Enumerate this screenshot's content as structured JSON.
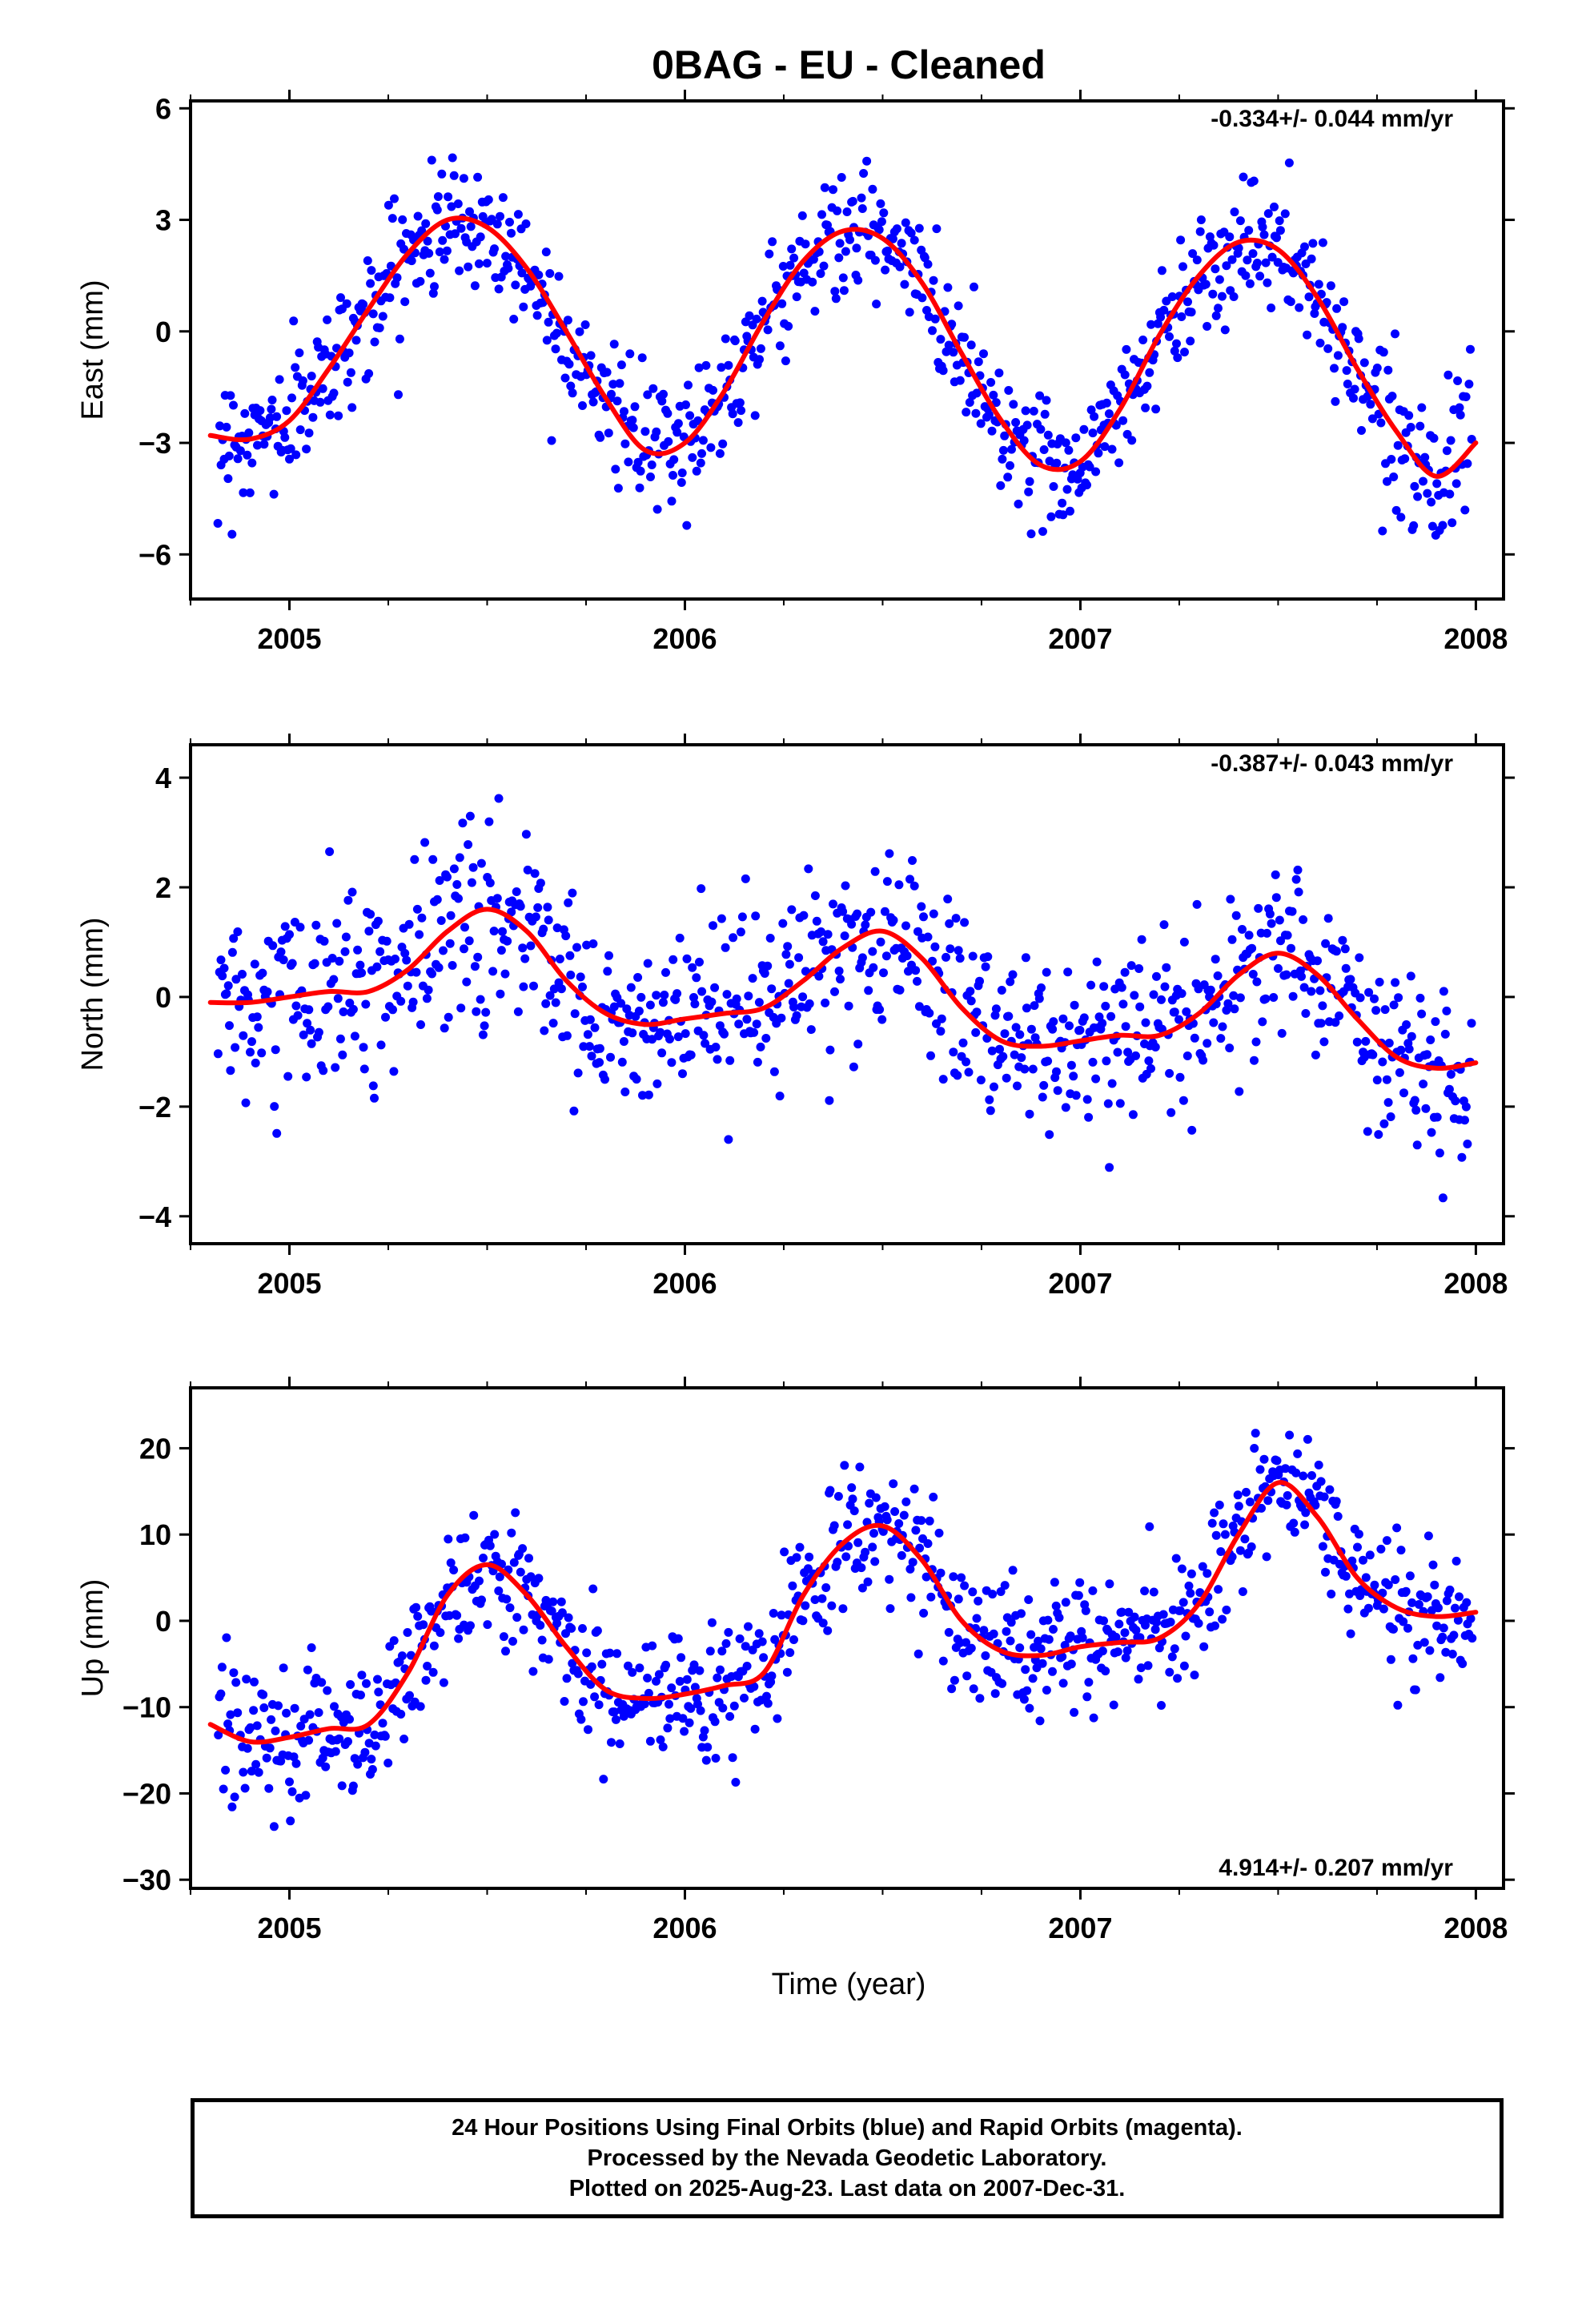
{
  "title": "0BAG  - EU - Cleaned",
  "xlabel": "Time (year)",
  "footer": {
    "line1": "24 Hour Positions Using Final Orbits (blue) and Rapid Orbits (magenta).",
    "line2": "Processed by the Nevada Geodetic Laboratory.",
    "line3": "Plotted on 2025-Aug-23. Last data on 2007-Dec-31."
  },
  "colors": {
    "points": "#0000ff",
    "fit": "#ff0000",
    "axes": "#000000"
  },
  "chart_data": [
    {
      "type": "scatter",
      "ylabel": "East (mm)",
      "rate": "-0.334+/- 0.044 mm/yr",
      "xlim": [
        2004.75,
        2008.07
      ],
      "ylim": [
        -7.2,
        6.2
      ],
      "xticks": [
        "2005",
        "2006",
        "2007",
        "2008"
      ],
      "yticks": [
        "-6",
        "-3",
        "0",
        "3",
        "6"
      ],
      "ytick_values": [
        -6,
        -3,
        0,
        3,
        6
      ],
      "fit": {
        "name": "model fit",
        "x": [
          2004.8,
          2004.9,
          2005.0,
          2005.1,
          2005.2,
          2005.3,
          2005.4,
          2005.5,
          2005.6,
          2005.7,
          2005.8,
          2005.9,
          2006.0,
          2006.1,
          2006.2,
          2006.3,
          2006.4,
          2006.5,
          2006.6,
          2006.7,
          2006.8,
          2006.9,
          2007.0,
          2007.1,
          2007.2,
          2007.3,
          2007.4,
          2007.5,
          2007.6,
          2007.7,
          2007.8,
          2007.9,
          2008.0
        ],
        "y": [
          -2.8,
          -2.9,
          -2.4,
          -1.0,
          0.6,
          2.1,
          3.0,
          2.8,
          1.7,
          0.0,
          -1.8,
          -3.2,
          -3.0,
          -1.6,
          0.3,
          1.9,
          2.7,
          2.5,
          1.3,
          -0.6,
          -2.4,
          -3.6,
          -3.5,
          -2.1,
          -0.1,
          1.5,
          2.4,
          2.2,
          0.9,
          -1.0,
          -2.7,
          -3.9,
          -3.0
        ]
      },
      "points": {
        "name": "positions",
        "x_start": 2004.82,
        "x_end": 2007.99,
        "count": 900,
        "scatter_sd": 1.0
      }
    },
    {
      "type": "scatter",
      "ylabel": "North (mm)",
      "rate": "-0.387+/- 0.043 mm/yr",
      "xlim": [
        2004.75,
        2008.07
      ],
      "ylim": [
        -4.5,
        4.6
      ],
      "xticks": [
        "2005",
        "2006",
        "2007",
        "2008"
      ],
      "yticks": [
        "4",
        "2",
        "0",
        "-2",
        "-4"
      ],
      "ytick_values": [
        4,
        2,
        0,
        -2,
        -4
      ],
      "fit": {
        "name": "model fit",
        "x": [
          2004.8,
          2004.9,
          2005.0,
          2005.1,
          2005.2,
          2005.3,
          2005.4,
          2005.5,
          2005.6,
          2005.7,
          2005.8,
          2005.9,
          2006.0,
          2006.1,
          2006.2,
          2006.3,
          2006.4,
          2006.5,
          2006.6,
          2006.7,
          2006.8,
          2006.9,
          2007.0,
          2007.1,
          2007.2,
          2007.3,
          2007.4,
          2007.5,
          2007.6,
          2007.7,
          2007.8,
          2007.9,
          2008.0
        ],
        "y": [
          -0.1,
          -0.1,
          0.0,
          0.1,
          0.1,
          0.5,
          1.2,
          1.6,
          1.2,
          0.3,
          -0.3,
          -0.5,
          -0.4,
          -0.3,
          -0.2,
          0.3,
          0.9,
          1.2,
          0.7,
          -0.2,
          -0.8,
          -0.9,
          -0.8,
          -0.7,
          -0.7,
          -0.3,
          0.4,
          0.8,
          0.4,
          -0.4,
          -1.1,
          -1.3,
          -1.2
        ]
      },
      "points": {
        "name": "positions",
        "x_start": 2004.82,
        "x_end": 2007.99,
        "count": 900,
        "scatter_sd": 1.0
      }
    },
    {
      "type": "scatter",
      "ylabel": "Up (mm)",
      "rate": "4.914+/- 0.207 mm/yr",
      "xlim": [
        2004.75,
        2008.07
      ],
      "ylim": [
        -31,
        27
      ],
      "xticks": [
        "2005",
        "2006",
        "2007",
        "2008"
      ],
      "yticks": [
        "20",
        "10",
        "0",
        "-10",
        "-20",
        "-30"
      ],
      "ytick_values": [
        20,
        10,
        0,
        -10,
        -20,
        -30
      ],
      "fit": {
        "name": "model fit",
        "x": [
          2004.8,
          2004.9,
          2005.0,
          2005.1,
          2005.2,
          2005.3,
          2005.4,
          2005.5,
          2005.6,
          2005.7,
          2005.8,
          2005.9,
          2006.0,
          2006.1,
          2006.2,
          2006.3,
          2006.4,
          2006.5,
          2006.6,
          2006.7,
          2006.8,
          2006.9,
          2007.0,
          2007.1,
          2007.2,
          2007.3,
          2007.4,
          2007.5,
          2007.6,
          2007.7,
          2007.8,
          2007.9,
          2008.0
        ],
        "y": [
          -12,
          -14,
          -13.5,
          -12.5,
          -12,
          -6,
          3,
          6.5,
          3,
          -3,
          -8,
          -9,
          -8.5,
          -7.5,
          -6,
          3,
          9,
          11,
          7,
          0,
          -3.5,
          -4,
          -3,
          -2.5,
          -2,
          2,
          10,
          16,
          12,
          5,
          1.5,
          0.5,
          1
        ]
      },
      "points": {
        "name": "positions",
        "x_start": 2004.82,
        "x_end": 2007.99,
        "count": 900,
        "scatter_sd": 4.5
      }
    }
  ]
}
